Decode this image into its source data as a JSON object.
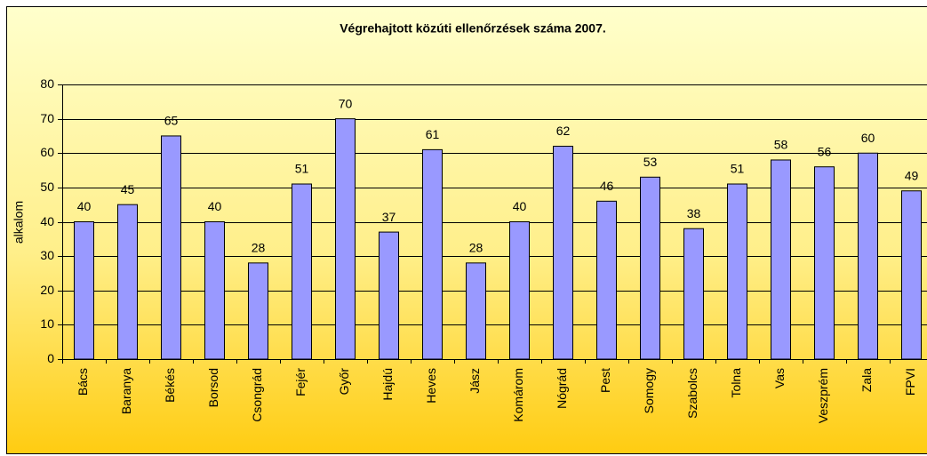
{
  "chart_data": {
    "type": "bar",
    "title": "Végrehajtott közúti ellenőrzések száma 2007.",
    "y_label": "alkalom",
    "categories": [
      "Bács",
      "Baranya",
      "Békés",
      "Borsod",
      "Csongrád",
      "Fejér",
      "Győr",
      "Hajdú",
      "Heves",
      "Jász",
      "Komárom",
      "Nógrád",
      "Pest",
      "Somogy",
      "Szabolcs",
      "Tolna",
      "Vas",
      "Veszprém",
      "Zala",
      "FPVI"
    ],
    "values": [
      40,
      45,
      65,
      40,
      28,
      51,
      70,
      37,
      61,
      28,
      40,
      62,
      46,
      53,
      38,
      51,
      58,
      56,
      60,
      49
    ],
    "color": "#9999ff",
    "ylim": [
      0,
      80
    ],
    "yticks": [
      0,
      10,
      20,
      30,
      40,
      50,
      60,
      70,
      80
    ],
    "grid": true
  }
}
